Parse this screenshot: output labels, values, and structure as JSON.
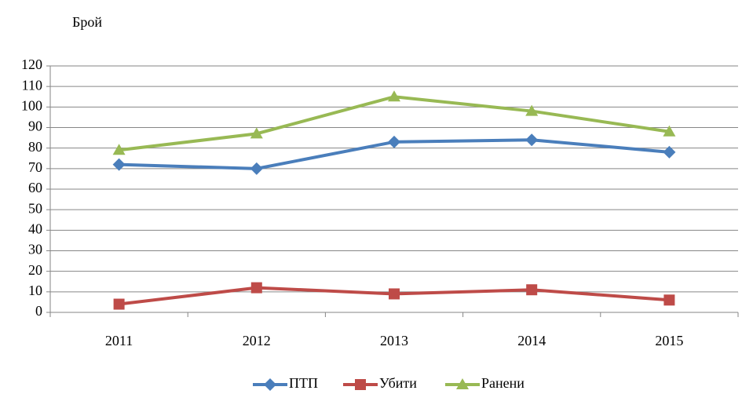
{
  "chart_data": {
    "type": "line",
    "y_axis_label": "Брой",
    "categories": [
      "2011",
      "2012",
      "2013",
      "2014",
      "2015"
    ],
    "series": [
      {
        "name": "ПТП",
        "color": "#4a7ebb",
        "marker": "diamond",
        "values": [
          72,
          70,
          83,
          84,
          78
        ]
      },
      {
        "name": "Убити",
        "color": "#be4b48",
        "marker": "square",
        "values": [
          4,
          12,
          9,
          11,
          6
        ]
      },
      {
        "name": "Ранени",
        "color": "#98b954",
        "marker": "triangle",
        "values": [
          79,
          87,
          105,
          98,
          88
        ]
      }
    ],
    "ylim": [
      0,
      120
    ],
    "yticks": [
      0,
      10,
      20,
      30,
      40,
      50,
      60,
      70,
      80,
      90,
      100,
      110,
      120
    ],
    "grid": true,
    "legend": "bottom"
  }
}
